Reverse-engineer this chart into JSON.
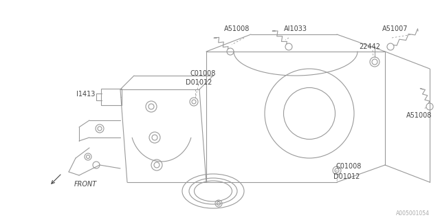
{
  "bg_color": "#ffffff",
  "line_color": "#999999",
  "text_color": "#444444",
  "watermark": "A005001054",
  "labels": {
    "A51008_top": "A51008",
    "A11033": "AI1033",
    "A51007": "A51007",
    "22442": "22442",
    "C01008_top": "C01008",
    "D01012_top": "D01012",
    "I1413": "I1413",
    "A51008_mid": "A51008",
    "C01008_bot": "C01008",
    "D01012_bot": "D01012",
    "FRONT": "FRONT"
  },
  "figsize": [
    6.4,
    3.2
  ],
  "dpi": 100
}
